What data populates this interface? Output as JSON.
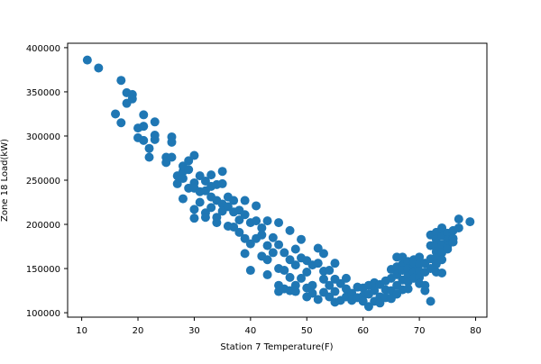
{
  "chart_data": {
    "type": "scatter",
    "title": "",
    "xlabel": "Station 7 Temperature(F)",
    "ylabel": "Zone 18 Load(kW)",
    "xlim": [
      7.5,
      82
    ],
    "ylim": [
      95000,
      405000
    ],
    "xticks": [
      10,
      20,
      30,
      40,
      50,
      60,
      70,
      80
    ],
    "yticks": [
      100000,
      150000,
      200000,
      250000,
      300000,
      350000,
      400000
    ],
    "xtick_labels": [
      "10",
      "20",
      "30",
      "40",
      "50",
      "60",
      "70",
      "80"
    ],
    "ytick_labels": [
      "100000",
      "150000",
      "200000",
      "250000",
      "300000",
      "350000",
      "400000"
    ],
    "grid": false,
    "legend": "none",
    "marker_color": "#1f77b4",
    "series": [
      {
        "points": [
          [
            11,
            386000
          ],
          [
            13,
            377000
          ],
          [
            16,
            325000
          ],
          [
            17,
            363000
          ],
          [
            17,
            315000
          ],
          [
            18,
            349000
          ],
          [
            18,
            337000
          ],
          [
            19,
            347000
          ],
          [
            19,
            342000
          ],
          [
            20,
            309000
          ],
          [
            20,
            298000
          ],
          [
            21,
            324000
          ],
          [
            21,
            311000
          ],
          [
            21,
            295000
          ],
          [
            22,
            286000
          ],
          [
            22,
            276000
          ],
          [
            23,
            316000
          ],
          [
            23,
            301000
          ],
          [
            23,
            296000
          ],
          [
            25,
            276000
          ],
          [
            25,
            270000
          ],
          [
            26,
            299000
          ],
          [
            26,
            293000
          ],
          [
            26,
            276000
          ],
          [
            27,
            255000
          ],
          [
            27,
            246000
          ],
          [
            28,
            260000
          ],
          [
            28,
            252000
          ],
          [
            28,
            266000
          ],
          [
            28,
            229000
          ],
          [
            29,
            272000
          ],
          [
            29,
            262000
          ],
          [
            29,
            241000
          ],
          [
            30,
            278000
          ],
          [
            30,
            247000
          ],
          [
            30,
            241000
          ],
          [
            30,
            217000
          ],
          [
            30,
            207000
          ],
          [
            31,
            255000
          ],
          [
            31,
            237000
          ],
          [
            31,
            225000
          ],
          [
            32,
            249000
          ],
          [
            32,
            238000
          ],
          [
            32,
            213000
          ],
          [
            32,
            208000
          ],
          [
            33,
            256000
          ],
          [
            33,
            243000
          ],
          [
            33,
            231000
          ],
          [
            33,
            219000
          ],
          [
            34,
            245000
          ],
          [
            34,
            227000
          ],
          [
            34,
            208000
          ],
          [
            34,
            202000
          ],
          [
            35,
            260000
          ],
          [
            35,
            246000
          ],
          [
            35,
            223000
          ],
          [
            35,
            215000
          ],
          [
            36,
            231000
          ],
          [
            36,
            220000
          ],
          [
            36,
            198000
          ],
          [
            37,
            227000
          ],
          [
            37,
            214000
          ],
          [
            37,
            197000
          ],
          [
            38,
            216000
          ],
          [
            38,
            205000
          ],
          [
            38,
            191000
          ],
          [
            39,
            227000
          ],
          [
            39,
            211000
          ],
          [
            39,
            184000
          ],
          [
            39,
            167000
          ],
          [
            40,
            202000
          ],
          [
            40,
            178000
          ],
          [
            40,
            148000
          ],
          [
            41,
            221000
          ],
          [
            41,
            204000
          ],
          [
            41,
            184000
          ],
          [
            42,
            196000
          ],
          [
            42,
            188000
          ],
          [
            42,
            164000
          ],
          [
            43,
            204000
          ],
          [
            43,
            176000
          ],
          [
            43,
            160000
          ],
          [
            43,
            143000
          ],
          [
            44,
            185000
          ],
          [
            44,
            168000
          ],
          [
            45,
            202000
          ],
          [
            45,
            177000
          ],
          [
            45,
            150000
          ],
          [
            45,
            131000
          ],
          [
            45,
            124000
          ],
          [
            46,
            168000
          ],
          [
            46,
            148000
          ],
          [
            46,
            127000
          ],
          [
            47,
            193000
          ],
          [
            47,
            160000
          ],
          [
            47,
            140000
          ],
          [
            47,
            125000
          ],
          [
            48,
            172000
          ],
          [
            48,
            154000
          ],
          [
            48,
            131000
          ],
          [
            48,
            124000
          ],
          [
            49,
            183000
          ],
          [
            49,
            162000
          ],
          [
            49,
            139000
          ],
          [
            50,
            159000
          ],
          [
            50,
            146000
          ],
          [
            50,
            128000
          ],
          [
            50,
            118000
          ],
          [
            51,
            154000
          ],
          [
            51,
            131000
          ],
          [
            51,
            122000
          ],
          [
            52,
            173000
          ],
          [
            52,
            156000
          ],
          [
            52,
            115000
          ],
          [
            53,
            167000
          ],
          [
            53,
            147000
          ],
          [
            53,
            138000
          ],
          [
            53,
            123000
          ],
          [
            54,
            148000
          ],
          [
            54,
            131000
          ],
          [
            54,
            118000
          ],
          [
            55,
            156000
          ],
          [
            55,
            138000
          ],
          [
            55,
            124000
          ],
          [
            55,
            112000
          ],
          [
            56,
            133000
          ],
          [
            56,
            114000
          ],
          [
            57,
            139000
          ],
          [
            57,
            127000
          ],
          [
            57,
            118000
          ],
          [
            58,
            122000
          ],
          [
            58,
            114000
          ],
          [
            59,
            129000
          ],
          [
            59,
            117000
          ],
          [
            60,
            128000
          ],
          [
            60,
            119000
          ],
          [
            60,
            113000
          ],
          [
            61,
            131000
          ],
          [
            61,
            107000
          ],
          [
            61,
            121000
          ],
          [
            62,
            134000
          ],
          [
            62,
            125000
          ],
          [
            62,
            113000
          ],
          [
            63,
            132000
          ],
          [
            63,
            118000
          ],
          [
            63,
            111000
          ],
          [
            64,
            136000
          ],
          [
            64,
            126000
          ],
          [
            64,
            117000
          ],
          [
            65,
            149000
          ],
          [
            65,
            139000
          ],
          [
            65,
            125000
          ],
          [
            65,
            116000
          ],
          [
            66,
            163000
          ],
          [
            66,
            152000
          ],
          [
            66,
            143000
          ],
          [
            66,
            131000
          ],
          [
            66,
            121000
          ],
          [
            67,
            163000
          ],
          [
            67,
            155000
          ],
          [
            67,
            148000
          ],
          [
            67,
            137000
          ],
          [
            67,
            126000
          ],
          [
            68,
            158000
          ],
          [
            68,
            150000
          ],
          [
            68,
            142000
          ],
          [
            68,
            135000
          ],
          [
            68,
            127000
          ],
          [
            69,
            160000
          ],
          [
            69,
            153000
          ],
          [
            69,
            146000
          ],
          [
            69,
            139000
          ],
          [
            69,
            157000
          ],
          [
            70,
            163000
          ],
          [
            70,
            155000
          ],
          [
            70,
            147000
          ],
          [
            70,
            140000
          ],
          [
            70,
            133000
          ],
          [
            71,
            156000
          ],
          [
            71,
            146000
          ],
          [
            71,
            131000
          ],
          [
            71,
            125000
          ],
          [
            72,
            188000
          ],
          [
            72,
            176000
          ],
          [
            72,
            161000
          ],
          [
            72,
            150000
          ],
          [
            72,
            113000
          ],
          [
            73,
            191000
          ],
          [
            73,
            183000
          ],
          [
            73,
            175000
          ],
          [
            73,
            169000
          ],
          [
            73,
            162000
          ],
          [
            73,
            155000
          ],
          [
            73,
            146000
          ],
          [
            74,
            196000
          ],
          [
            74,
            187000
          ],
          [
            74,
            177000
          ],
          [
            74,
            168000
          ],
          [
            74,
            160000
          ],
          [
            74,
            145000
          ],
          [
            75,
            190000
          ],
          [
            75,
            182000
          ],
          [
            75,
            175000
          ],
          [
            75,
            172000
          ],
          [
            76,
            193000
          ],
          [
            76,
            184000
          ],
          [
            76,
            180000
          ],
          [
            77,
            206000
          ],
          [
            77,
            196000
          ],
          [
            79,
            203000
          ]
        ]
      }
    ]
  }
}
